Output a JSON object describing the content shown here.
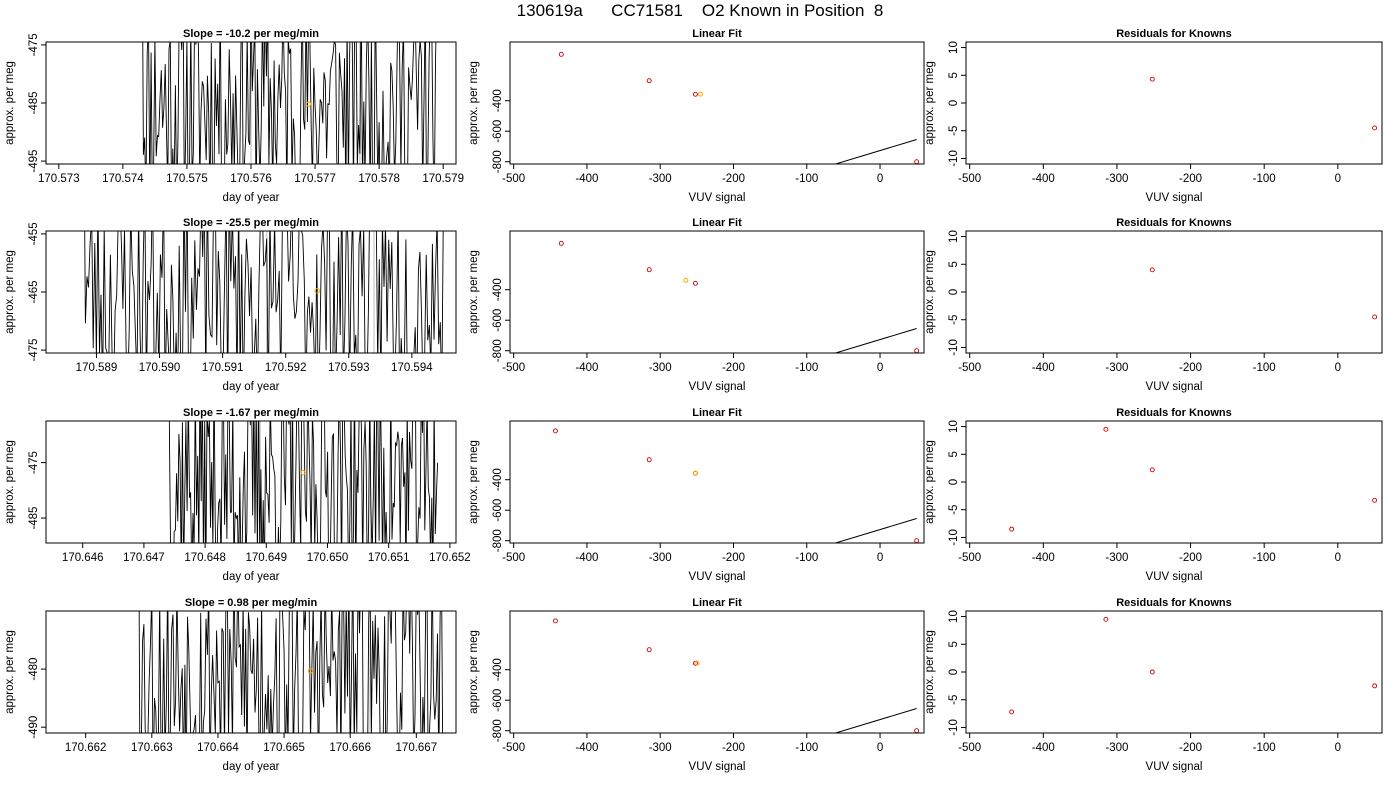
{
  "figure": {
    "title": "130619a      CC71581    O2 Known in Position  8"
  },
  "colors": {
    "line": "#000000",
    "point": "#cc0000",
    "highlight": "#ffa500",
    "vline": "#bebebe"
  },
  "chart_data": [
    {
      "type": "line",
      "row": 0,
      "col": 0,
      "title": "Slope =  -10.2  per meg/min",
      "xlabel": "day of year",
      "ylabel": "approx. per meg",
      "xlim": [
        170.5728,
        170.5792
      ],
      "ylim": [
        -495.5,
        -474.5
      ],
      "xticks": [
        "170.573",
        "170.574",
        "170.575",
        "170.576",
        "170.577",
        "170.578",
        "170.579"
      ],
      "yticks": [
        "-475",
        "-485",
        "-495"
      ],
      "series_range": [
        170.5743,
        170.5789
      ],
      "vlines": [
        170.576,
        170.5777
      ],
      "marker": {
        "x": 170.5769,
        "y": -485.2
      },
      "seed": 11
    },
    {
      "type": "scatter",
      "row": 0,
      "col": 1,
      "title": "Linear Fit",
      "xlabel": "VUV signal",
      "ylabel": "approx. per meg",
      "xlim": [
        -505,
        60
      ],
      "ylim": [
        -815,
        -15
      ],
      "xticks": [
        "-500",
        "-400",
        "-300",
        "-200",
        "-100",
        "0"
      ],
      "yticks": [
        "-400",
        "-600",
        "-800"
      ],
      "fit": {
        "slope": 1.45,
        "intercept": -727
      },
      "points": [
        [
          -435,
          -96
        ],
        [
          -315,
          -269
        ],
        [
          -252,
          -358
        ],
        [
          50,
          -800
        ]
      ],
      "highlight": [
        [
          -245,
          -357
        ]
      ]
    },
    {
      "type": "scatter",
      "row": 0,
      "col": 2,
      "title": "Residuals for Knowns",
      "xlabel": "VUV signal",
      "ylabel": "approx. per meg",
      "xlim": [
        -505,
        60
      ],
      "ylim": [
        -11,
        11
      ],
      "xticks": [
        "-500",
        "-400",
        "-300",
        "-200",
        "-100",
        "0"
      ],
      "yticks": [
        "10",
        "5",
        "0",
        "-5",
        "-10"
      ],
      "points": [
        [
          -252,
          4.3
        ],
        [
          50,
          -4.5
        ]
      ]
    },
    {
      "type": "line",
      "row": 1,
      "col": 0,
      "title": "Slope =  -25.5  per meg/min",
      "xlabel": "day of year",
      "ylabel": "approx. per meg",
      "xlim": [
        170.5882,
        170.5947
      ],
      "ylim": [
        -475.5,
        -454.5
      ],
      "xticks": [
        "170.589",
        "170.590",
        "170.591",
        "170.592",
        "170.593",
        "170.594"
      ],
      "yticks": [
        "-455",
        "-465",
        "-475"
      ],
      "series_range": [
        170.5888,
        170.5945
      ],
      "vlines": [
        170.5917,
        170.5934
      ],
      "marker": {
        "x": 170.5925,
        "y": -464.8
      },
      "seed": 23
    },
    {
      "type": "scatter",
      "row": 1,
      "col": 1,
      "title": "Linear Fit",
      "xlabel": "VUV signal",
      "ylabel": "approx. per meg",
      "xlim": [
        -505,
        60
      ],
      "ylim": [
        -815,
        -15
      ],
      "xticks": [
        "-500",
        "-400",
        "-300",
        "-200",
        "-100",
        "0"
      ],
      "yticks": [
        "-400",
        "-600",
        "-800"
      ],
      "fit": {
        "slope": 1.45,
        "intercept": -727
      },
      "points": [
        [
          -435,
          -96
        ],
        [
          -315,
          -269
        ],
        [
          -252,
          -358
        ],
        [
          50,
          -800
        ]
      ],
      "highlight": [
        [
          -265,
          -339
        ]
      ]
    },
    {
      "type": "scatter",
      "row": 1,
      "col": 2,
      "title": "Residuals for Knowns",
      "xlabel": "VUV signal",
      "ylabel": "approx. per meg",
      "xlim": [
        -505,
        60
      ],
      "ylim": [
        -11,
        11
      ],
      "xticks": [
        "-500",
        "-400",
        "-300",
        "-200",
        "-100",
        "0"
      ],
      "yticks": [
        "10",
        "5",
        "0",
        "-5",
        "-10"
      ],
      "points": [
        [
          -252,
          4.0
        ],
        [
          50,
          -4.5
        ]
      ]
    },
    {
      "type": "line",
      "row": 2,
      "col": 0,
      "title": "Slope =  -1.67  per meg/min",
      "xlabel": "day of year",
      "ylabel": "approx. per meg",
      "xlim": [
        170.6454,
        170.6521
      ],
      "ylim": [
        -489.5,
        -467.5
      ],
      "xticks": [
        "170.646",
        "170.647",
        "170.648",
        "170.649",
        "170.650",
        "170.651",
        "170.652"
      ],
      "yticks": [
        "-475",
        "-485"
      ],
      "series_range": [
        170.6474,
        170.6518
      ],
      "vlines": [
        170.6489,
        170.6507
      ],
      "marker": {
        "x": 170.6496,
        "y": -476.8
      },
      "seed": 37
    },
    {
      "type": "scatter",
      "row": 2,
      "col": 1,
      "title": "Linear Fit",
      "xlabel": "VUV signal",
      "ylabel": "approx. per meg",
      "xlim": [
        -505,
        60
      ],
      "ylim": [
        -815,
        -15
      ],
      "xticks": [
        "-500",
        "-400",
        "-300",
        "-200",
        "-100",
        "0"
      ],
      "yticks": [
        "-400",
        "-600",
        "-800"
      ],
      "fit": {
        "slope": 1.45,
        "intercept": -727
      },
      "points": [
        [
          -443,
          -80
        ],
        [
          -315,
          -269
        ],
        [
          -252,
          -358
        ],
        [
          50,
          -800
        ]
      ],
      "highlight": [
        [
          -252,
          -357
        ]
      ]
    },
    {
      "type": "scatter",
      "row": 2,
      "col": 2,
      "title": "Residuals for Knowns",
      "xlabel": "VUV signal",
      "ylabel": "approx. per meg",
      "xlim": [
        -505,
        60
      ],
      "ylim": [
        -11,
        11
      ],
      "xticks": [
        "-500",
        "-400",
        "-300",
        "-200",
        "-100",
        "0"
      ],
      "yticks": [
        "10",
        "5",
        "0",
        "-5",
        "-10"
      ],
      "points": [
        [
          -443,
          -8.5
        ],
        [
          -315,
          9.5
        ],
        [
          -252,
          2.2
        ],
        [
          50,
          -3.3
        ]
      ]
    },
    {
      "type": "line",
      "row": 3,
      "col": 0,
      "title": "Slope =  0.98  per meg/min",
      "xlabel": "day of year",
      "ylabel": "approx. per meg",
      "xlim": [
        170.6614,
        170.6676
      ],
      "ylim": [
        -491,
        -470
      ],
      "xticks": [
        "170.662",
        "170.663",
        "170.664",
        "170.665",
        "170.666",
        "170.667"
      ],
      "yticks": [
        "-480",
        "-490"
      ],
      "series_range": [
        170.6628,
        170.6674
      ],
      "vlines": [
        170.6663
      ],
      "marker": {
        "x": 170.6654,
        "y": -480.3
      },
      "seed": 53
    },
    {
      "type": "scatter",
      "row": 3,
      "col": 1,
      "title": "Linear Fit",
      "xlabel": "VUV signal",
      "ylabel": "approx. per meg",
      "xlim": [
        -505,
        60
      ],
      "ylim": [
        -815,
        -15
      ],
      "xticks": [
        "-500",
        "-400",
        "-300",
        "-200",
        "-100",
        "0"
      ],
      "yticks": [
        "-400",
        "-600",
        "-800"
      ],
      "fit": {
        "slope": 1.45,
        "intercept": -727
      },
      "points": [
        [
          -443,
          -80
        ],
        [
          -315,
          -269
        ],
        [
          -252,
          -358
        ],
        [
          50,
          -800
        ]
      ],
      "highlight": [
        [
          -250,
          -357
        ]
      ]
    },
    {
      "type": "scatter",
      "row": 3,
      "col": 2,
      "title": "Residuals for Knowns",
      "xlabel": "VUV signal",
      "ylabel": "approx. per meg",
      "xlim": [
        -505,
        60
      ],
      "ylim": [
        -11,
        11
      ],
      "xticks": [
        "-500",
        "-400",
        "-300",
        "-200",
        "-100",
        "0"
      ],
      "yticks": [
        "10",
        "5",
        "0",
        "-5",
        "-10"
      ],
      "points": [
        [
          -443,
          -7.2
        ],
        [
          -315,
          9.5
        ],
        [
          -252,
          0.0
        ],
        [
          50,
          -2.5
        ]
      ]
    }
  ]
}
